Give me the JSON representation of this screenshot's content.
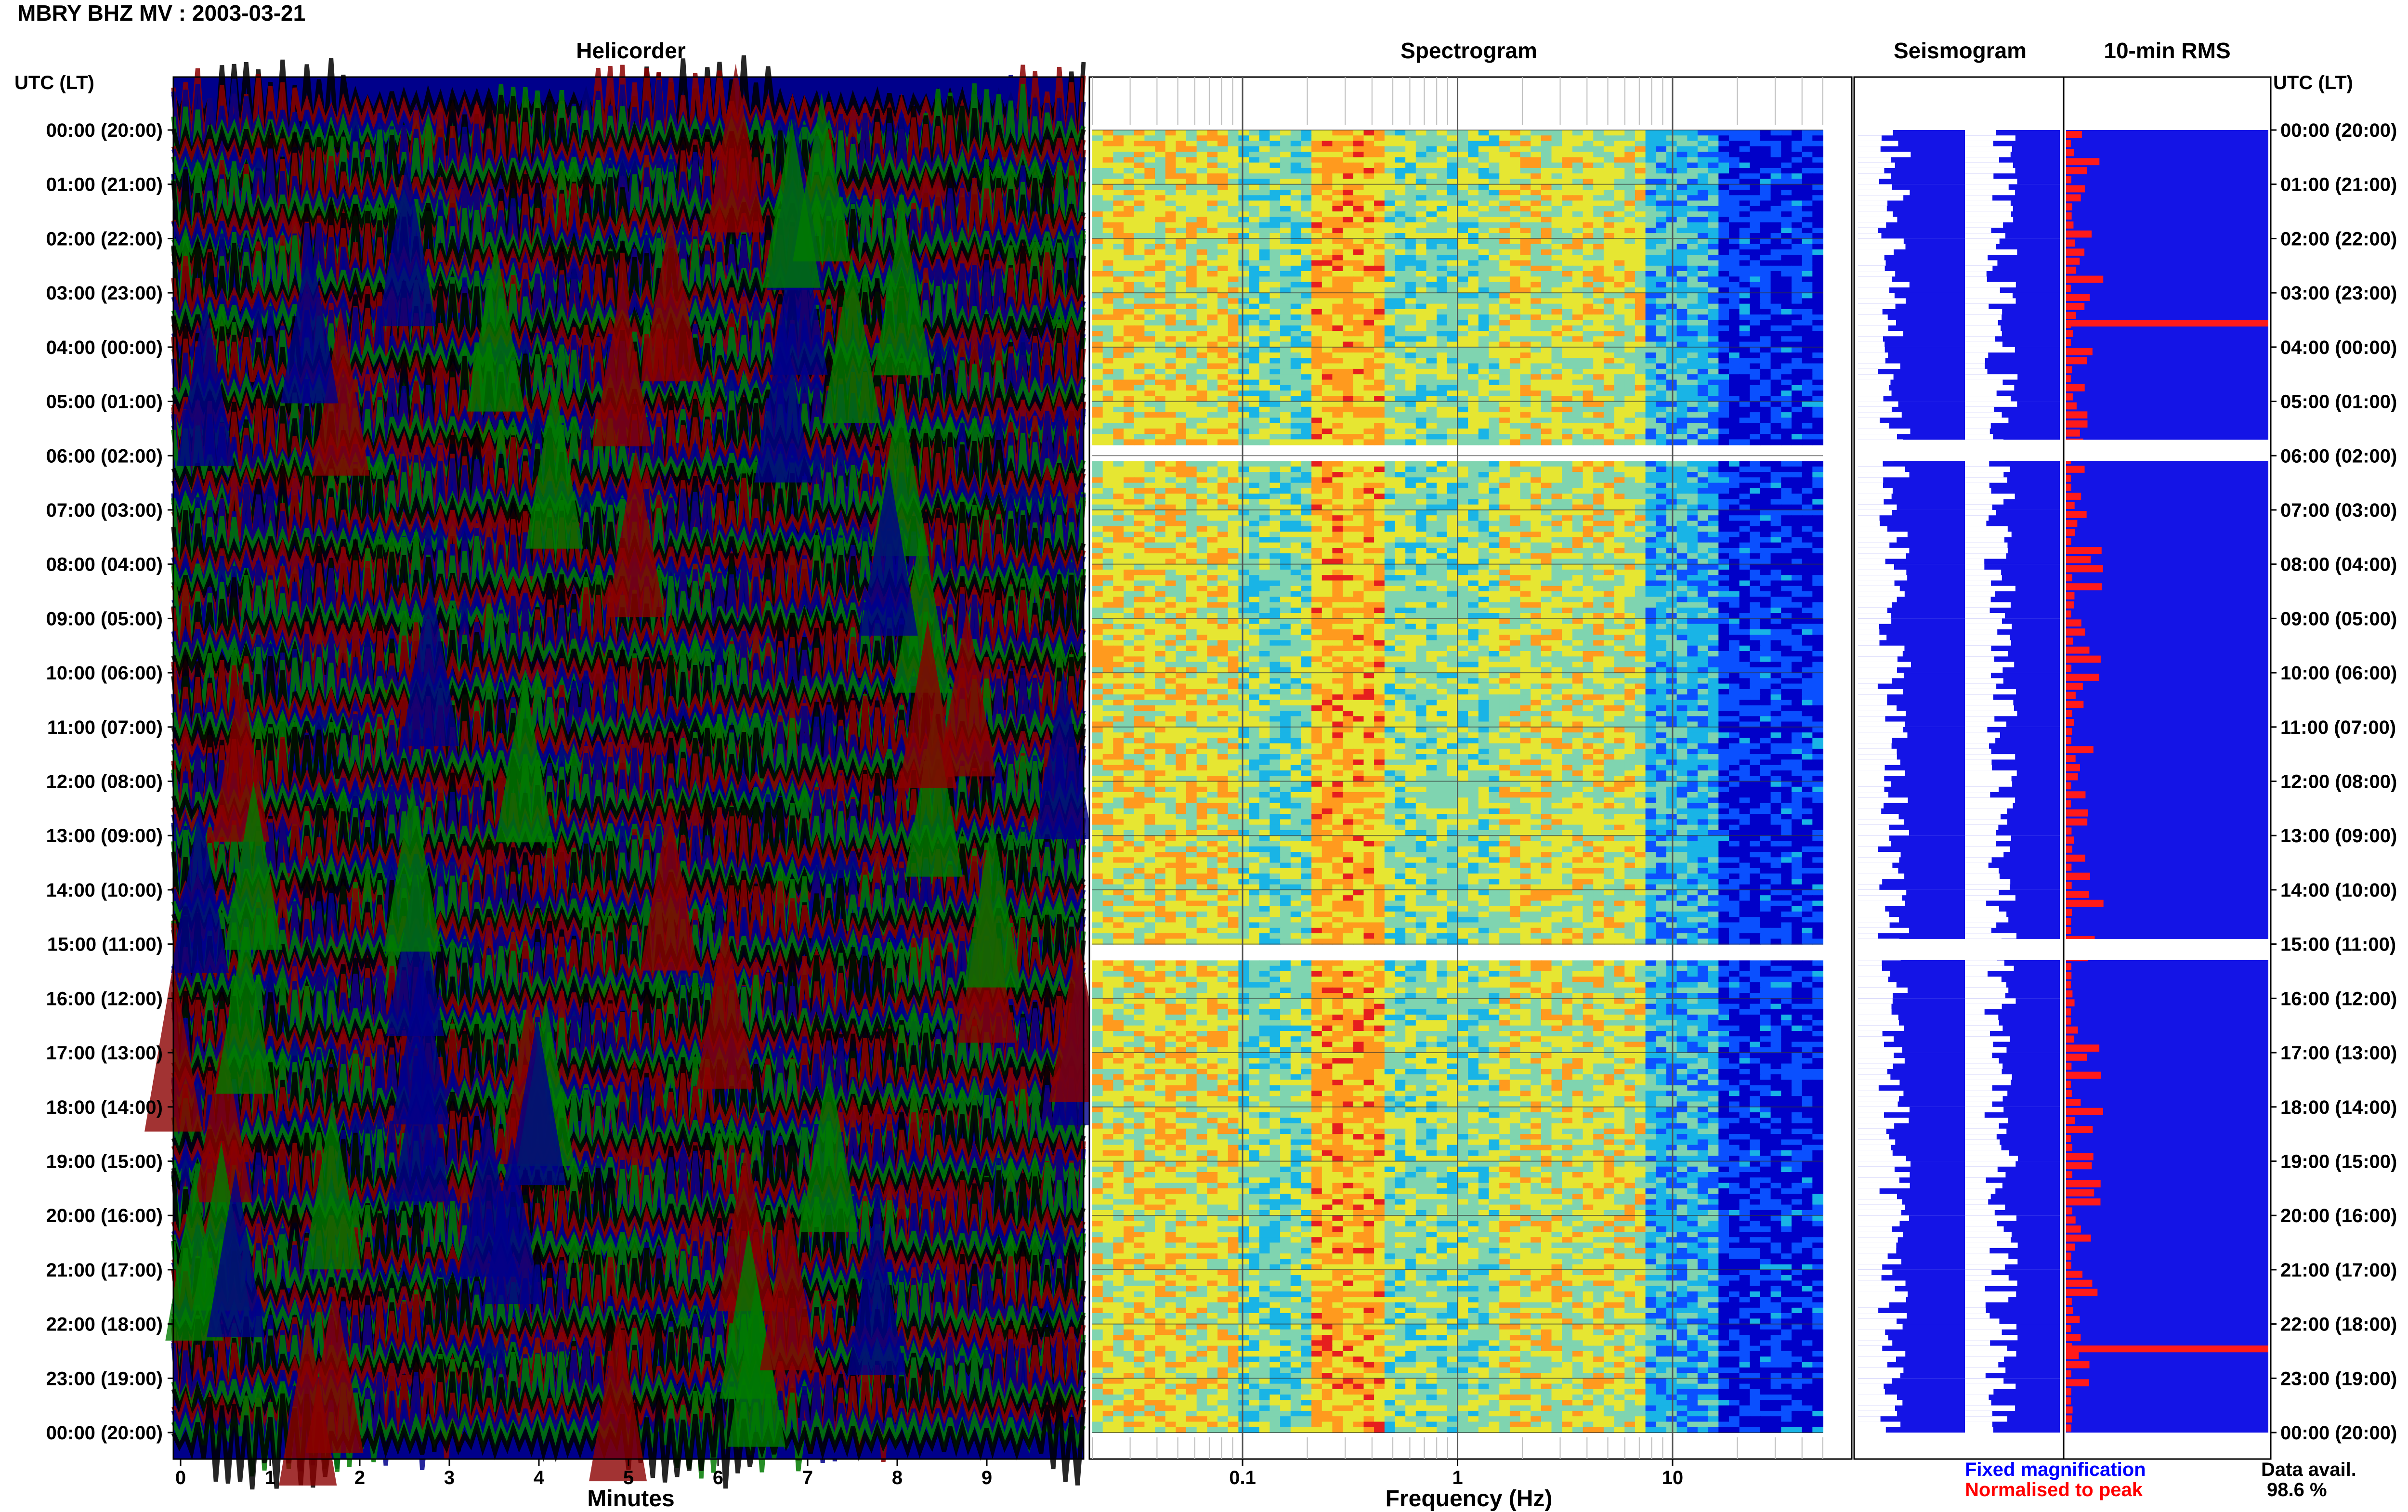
{
  "page": {
    "title": "MBRY BHZ MV : 2003-03-21"
  },
  "panels": {
    "helicorder": "Helicorder",
    "spectrogram": "Spectrogram",
    "seismogram": "Seismogram",
    "rms": "10-min RMS"
  },
  "axes": {
    "left_header": "UTC (LT)",
    "right_header": "UTC (LT)",
    "minutes_label": "Minutes",
    "frequency_label": "Frequency (Hz)"
  },
  "legend": {
    "fixed": "Fixed magnification",
    "normalised": "Normalised to peak",
    "avail_label": "Data avail.",
    "avail_value": "98.6 %"
  },
  "chart_data": {
    "type": "heatmap",
    "title": "MBRY BHZ MV : 2003-03-21",
    "time_labels": [
      "00:00 (20:00)",
      "01:00 (21:00)",
      "02:00 (22:00)",
      "03:00 (23:00)",
      "04:00 (00:00)",
      "05:00 (01:00)",
      "06:00 (02:00)",
      "07:00 (03:00)",
      "08:00 (04:00)",
      "09:00 (05:00)",
      "10:00 (06:00)",
      "11:00 (07:00)",
      "12:00 (08:00)",
      "13:00 (09:00)",
      "14:00 (10:00)",
      "15:00 (11:00)",
      "16:00 (12:00)",
      "17:00 (13:00)",
      "18:00 (14:00)",
      "19:00 (15:00)",
      "20:00 (16:00)",
      "21:00 (17:00)",
      "22:00 (18:00)",
      "23:00 (19:00)",
      "00:00 (20:00)"
    ],
    "helicorder": {
      "xlabel": "Minutes",
      "x_ticks": [
        "0",
        "1",
        "2",
        "3",
        "4",
        "5",
        "6",
        "7",
        "8",
        "9"
      ],
      "xlim": [
        0,
        10
      ],
      "trace_colors": [
        "#000000",
        "#8b0000",
        "#00008b",
        "#007a00"
      ]
    },
    "spectrogram": {
      "xlabel": "Frequency (Hz)",
      "x_scale": "log",
      "x_ticks": [
        "0.1",
        "1",
        "10"
      ],
      "xlim": [
        0.02,
        50
      ],
      "gaps_hours": [
        5.9,
        15.1
      ],
      "colormap": [
        "#0000c8",
        "#0a50ff",
        "#19b4e6",
        "#7fd4b0",
        "#e6e632",
        "#ff9a1e",
        "#e61e1e"
      ]
    },
    "rms_normalised_hours": [
      3.55,
      22.45
    ],
    "data_availability_percent": 98.6
  }
}
